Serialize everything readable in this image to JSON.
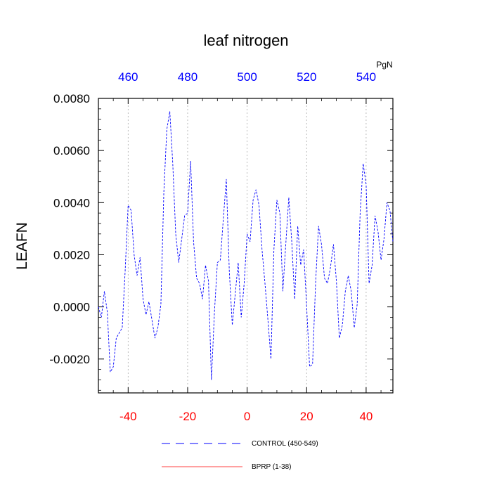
{
  "chart_data": {
    "type": "line",
    "title": "leaf nitrogen",
    "ylabel": "LEAFN",
    "top_axis_unit": "PgN",
    "xlim": [
      -50,
      49
    ],
    "ylim": [
      -0.0033,
      0.008
    ],
    "grid": "vertical dotted",
    "colors": {
      "control": "#0000ff",
      "bprp": "#ff0000",
      "bottom_ticks": "#ff0000",
      "top_ticks": "#0000ff"
    },
    "bottom_ticks": [
      {
        "value": -40,
        "label": "-40"
      },
      {
        "value": -20,
        "label": "-20"
      },
      {
        "value": 0,
        "label": "0"
      },
      {
        "value": 20,
        "label": "20"
      },
      {
        "value": 40,
        "label": "40"
      }
    ],
    "top_ticks": [
      {
        "value": -40,
        "label": "460"
      },
      {
        "value": -20,
        "label": "480"
      },
      {
        "value": 0,
        "label": "500"
      },
      {
        "value": 20,
        "label": "520"
      },
      {
        "value": 40,
        "label": "540"
      }
    ],
    "y_ticks": [
      {
        "value": 0.008,
        "label": "0.0080"
      },
      {
        "value": 0.006,
        "label": "0.0060"
      },
      {
        "value": 0.004,
        "label": "0.0040"
      },
      {
        "value": 0.002,
        "label": "0.0020"
      },
      {
        "value": 0.0,
        "label": "0.0000"
      },
      {
        "value": -0.002,
        "label": "-0.0020"
      }
    ],
    "series": [
      {
        "name": "CONTROL (450-549)",
        "style": "dashed",
        "x": [
          -50,
          -49,
          -48,
          -47,
          -46,
          -45,
          -44,
          -43,
          -42,
          -41,
          -40,
          -39,
          -38,
          -37,
          -36,
          -35,
          -34,
          -33,
          -32,
          -31,
          -30,
          -29,
          -28,
          -27,
          -26,
          -25,
          -24,
          -23,
          -22,
          -21,
          -20,
          -19,
          -18,
          -17,
          -16,
          -15,
          -14,
          -13,
          -12,
          -11,
          -10,
          -9,
          -8,
          -7,
          -6,
          -5,
          -4,
          -3,
          -2,
          -1,
          0,
          1,
          2,
          3,
          4,
          5,
          6,
          7,
          8,
          9,
          10,
          11,
          12,
          13,
          14,
          15,
          16,
          17,
          18,
          19,
          20,
          21,
          22,
          23,
          24,
          25,
          26,
          27,
          28,
          29,
          30,
          31,
          32,
          33,
          34,
          35,
          36,
          37,
          38,
          39,
          40,
          41,
          42,
          43,
          44,
          45,
          46,
          47,
          48,
          49
        ],
        "y": [
          0.0,
          -0.0004,
          0.0006,
          -0.0002,
          -0.0025,
          -0.0023,
          -0.0012,
          -0.001,
          -0.0008,
          0.0014,
          0.0039,
          0.0037,
          0.002,
          0.0012,
          0.0019,
          0.0003,
          -0.0003,
          0.0002,
          -0.0005,
          -0.0012,
          -0.0008,
          0.0001,
          0.0044,
          0.0068,
          0.0075,
          0.0055,
          0.0028,
          0.0017,
          0.0026,
          0.0035,
          0.0036,
          0.0056,
          0.0025,
          0.0011,
          0.0009,
          0.0003,
          0.0016,
          0.001,
          -0.0028,
          -0.0002,
          0.0017,
          0.0018,
          0.0034,
          0.0049,
          0.0014,
          -0.0007,
          0.0005,
          0.0017,
          -0.0004,
          0.0009,
          0.0028,
          0.0025,
          0.0041,
          0.0045,
          0.0039,
          0.0022,
          0.0009,
          -0.0005,
          -0.002,
          0.0022,
          0.0041,
          0.0036,
          0.0006,
          0.0024,
          0.0042,
          0.0025,
          0.0003,
          0.0031,
          0.0016,
          0.0022,
          0.0,
          -0.0023,
          -0.0022,
          0.0009,
          0.0031,
          0.0024,
          0.0011,
          0.0009,
          0.0015,
          0.0024,
          0.001,
          -0.0012,
          -0.0007,
          0.0006,
          0.0012,
          0.0006,
          -0.0008,
          0.0001,
          0.0036,
          0.0055,
          0.0047,
          0.0009,
          0.0016,
          0.0035,
          0.0029,
          0.0018,
          0.0026,
          0.004,
          0.0037,
          0.0025
        ]
      },
      {
        "name": "BPRP (1-38)",
        "style": "solid",
        "x": [],
        "y": []
      }
    ]
  }
}
